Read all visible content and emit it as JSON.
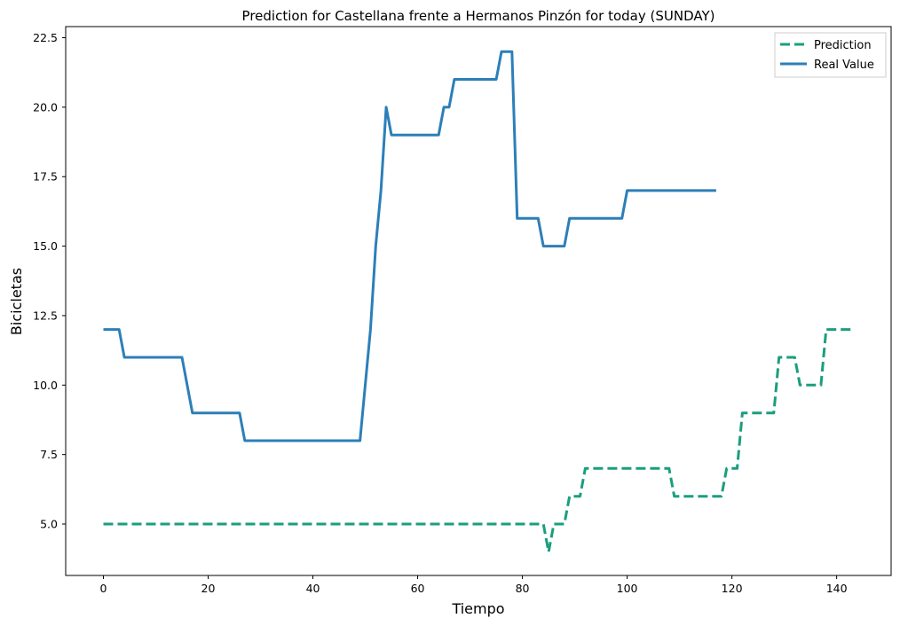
{
  "chart_data": {
    "type": "line",
    "title": "Prediction for Castellana frente a Hermanos Pinzón for today (SUNDAY)",
    "xlabel": "Tiempo",
    "ylabel": "Bicicletas",
    "xlim": [
      -7.2,
      150.4
    ],
    "ylim": [
      3.15,
      22.9
    ],
    "xticks": [
      0,
      20,
      40,
      60,
      80,
      100,
      120,
      140
    ],
    "yticks": [
      5.0,
      7.5,
      10.0,
      12.5,
      15.0,
      17.5,
      20.0,
      22.5
    ],
    "ytick_labels": [
      "5.0",
      "7.5",
      "10.0",
      "12.5",
      "15.0",
      "17.5",
      "20.0",
      "22.5"
    ],
    "grid": false,
    "legend_position": "top-right",
    "series": [
      {
        "name": "Prediction",
        "color": "#1a9e7e",
        "style": "dashed",
        "points": [
          [
            0,
            5
          ],
          [
            84,
            5
          ],
          [
            85,
            4
          ],
          [
            86,
            5
          ],
          [
            88,
            5
          ],
          [
            89,
            6
          ],
          [
            91,
            6
          ],
          [
            92,
            7
          ],
          [
            108,
            7
          ],
          [
            109,
            6
          ],
          [
            118,
            6
          ],
          [
            119,
            7
          ],
          [
            121,
            7
          ],
          [
            122,
            9
          ],
          [
            128,
            9
          ],
          [
            129,
            11
          ],
          [
            132,
            11
          ],
          [
            133,
            10
          ],
          [
            137,
            10
          ],
          [
            138,
            12
          ],
          [
            143,
            12
          ]
        ]
      },
      {
        "name": "Real Value",
        "color": "#2c7fb8",
        "style": "solid",
        "points": [
          [
            0,
            12
          ],
          [
            3,
            12
          ],
          [
            4,
            11
          ],
          [
            15,
            11
          ],
          [
            17,
            9
          ],
          [
            26,
            9
          ],
          [
            27,
            8
          ],
          [
            49,
            8
          ],
          [
            51,
            12
          ],
          [
            52,
            15
          ],
          [
            53,
            17
          ],
          [
            54,
            20
          ],
          [
            55,
            19
          ],
          [
            64,
            19
          ],
          [
            65,
            20
          ],
          [
            66,
            20
          ],
          [
            67,
            21
          ],
          [
            75,
            21
          ],
          [
            76,
            22
          ],
          [
            78,
            22
          ],
          [
            79,
            16
          ],
          [
            83,
            16
          ],
          [
            84,
            15
          ],
          [
            88,
            15
          ],
          [
            89,
            16
          ],
          [
            99,
            16
          ],
          [
            100,
            17
          ],
          [
            117,
            17
          ]
        ]
      }
    ]
  }
}
